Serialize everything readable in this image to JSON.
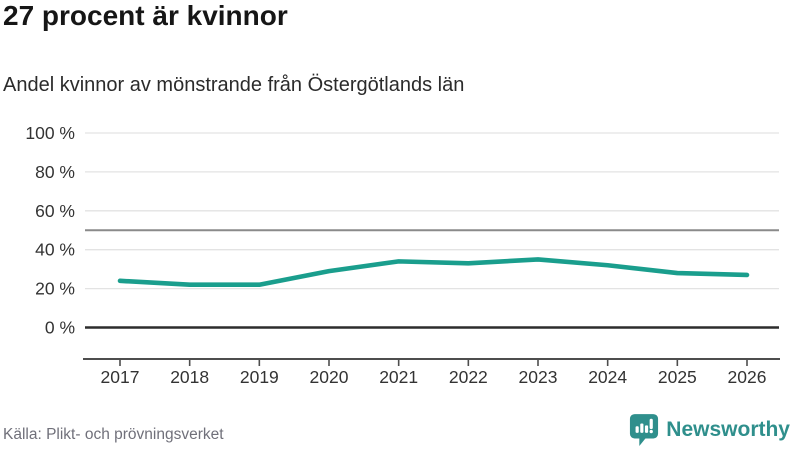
{
  "header": {
    "title": "27 procent är kvinnor",
    "subtitle": "Andel kvinnor av mönstrande från Östergötlands län"
  },
  "chart_data": {
    "type": "line",
    "title": "27 procent är kvinnor",
    "subtitle": "Andel kvinnor av mönstrande från Östergötlands län",
    "x": [
      2017,
      2018,
      2019,
      2020,
      2021,
      2022,
      2023,
      2024,
      2025,
      2026
    ],
    "xticks": [
      "2017",
      "2018",
      "2019",
      "2020",
      "2021",
      "2022",
      "2023",
      "2024",
      "2025",
      "2026"
    ],
    "series": [
      {
        "name": "Andel kvinnor av mönstrande",
        "values": [
          24,
          22,
          22,
          29,
          34,
          33,
          35,
          32,
          28,
          27
        ],
        "color": "#1a9e8d"
      }
    ],
    "unit": "%",
    "ylim": [
      0,
      100
    ],
    "yticks": [
      "0 %",
      "20 %",
      "40 %",
      "60 %",
      "80 %",
      "100 %"
    ],
    "ytick_values": [
      0,
      20,
      40,
      60,
      80,
      100
    ],
    "reference_line": 50,
    "grid": true,
    "legend_position": "none"
  },
  "colors": {
    "line": "#1a9e8d",
    "grid_light": "#e3e3e3",
    "grid_mid": "#8a8a8a",
    "zero_line": "#2d2d2d",
    "axis_line": "#4d4d4d",
    "tick_text": "#333333",
    "brand_teal": "#2f8f8c"
  },
  "footer": {
    "source": "Källa: Plikt- och prövningsverket",
    "brand": "Newsworthy"
  }
}
